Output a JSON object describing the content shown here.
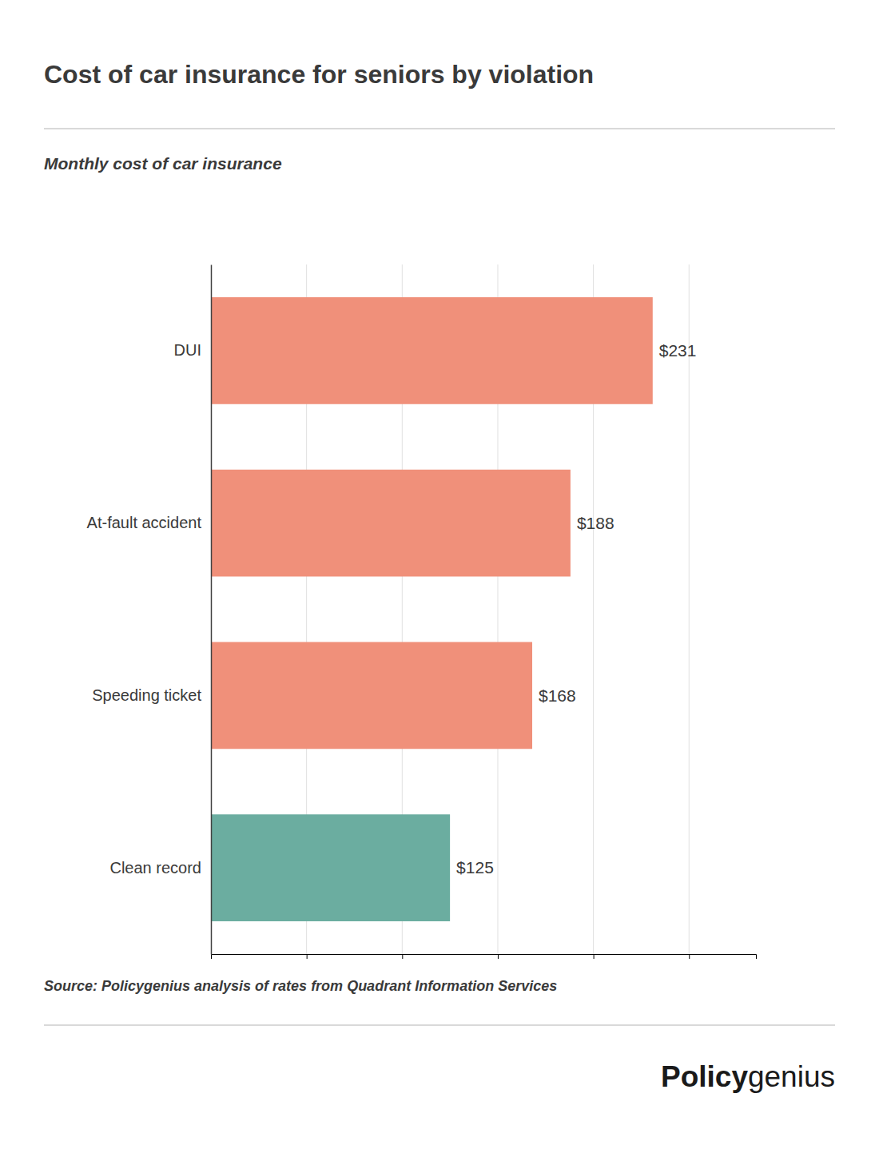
{
  "chart_data": {
    "type": "bar",
    "orientation": "horizontal",
    "title": "Cost of car insurance for seniors by violation",
    "subtitle": "Monthly cost of car insurance",
    "source": "Source: Policygenius analysis of rates from Quadrant Information Services",
    "annotations": [
      "Policy",
      "genius"
    ],
    "categories": [
      "Clean record",
      "Speeding ticket",
      "At-fault accident",
      "DUI"
    ],
    "values": [
      125,
      168,
      188,
      231
    ],
    "value_labels": [
      "$125",
      "$168",
      "$188",
      "$231"
    ],
    "data_labels": true,
    "colors": [
      "#6BADA0",
      "#F0907A",
      "#F0907A",
      "#F0907A"
    ],
    "xlim": [
      0,
      285
    ],
    "xticks": [
      50,
      100,
      150,
      200,
      250
    ],
    "grid": true,
    "tick_labels": "y"
  }
}
